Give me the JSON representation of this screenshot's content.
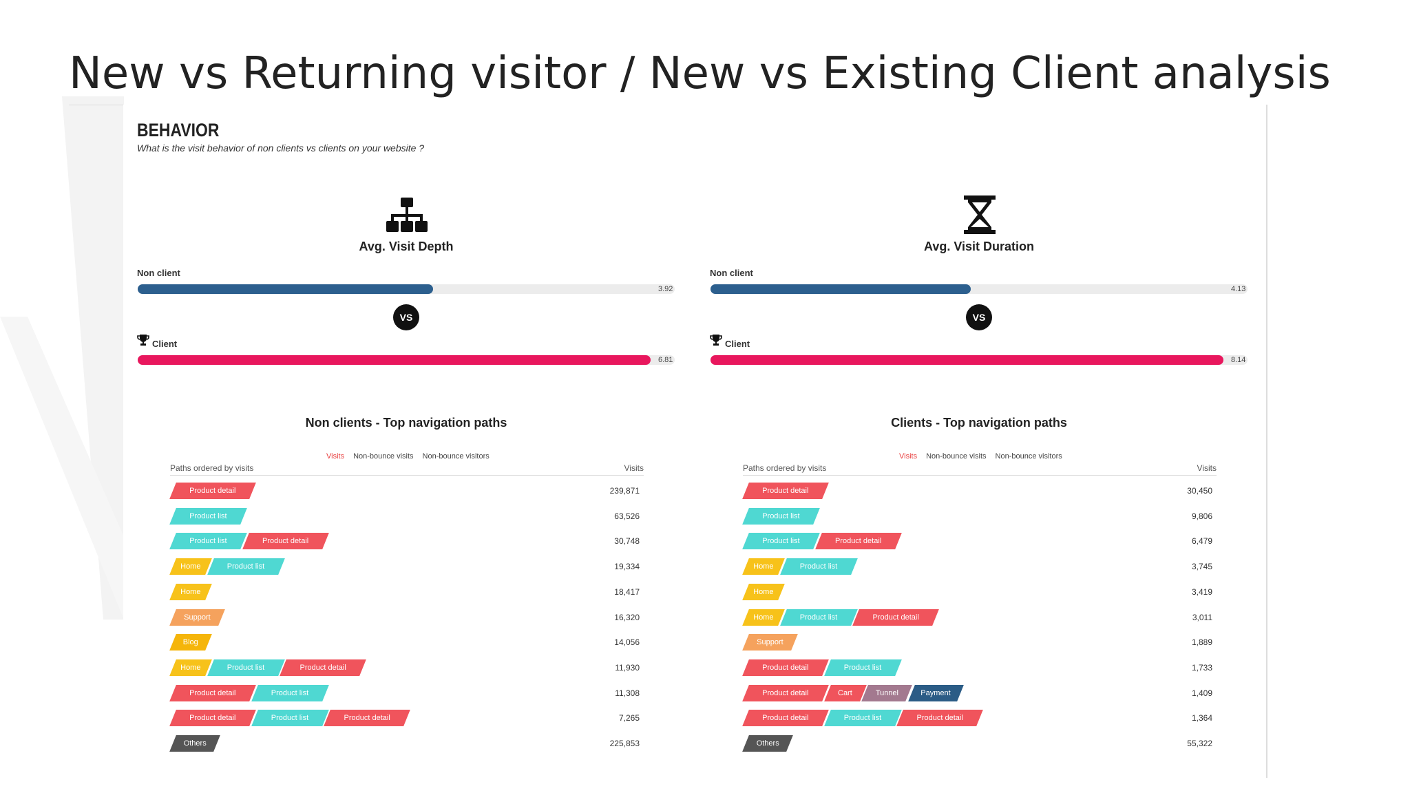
{
  "title": "New vs Returning visitor / New vs Existing Client analysis",
  "header": {
    "title": "BEHAVIOR",
    "subtitle": "What is the visit behavior of non clients vs clients on your website ?"
  },
  "vs": "VS",
  "metrics": [
    {
      "label": "Avg. Visit Depth",
      "non_client": {
        "label": "Non client",
        "value": 3.92,
        "color": "#2c5f8e"
      },
      "client": {
        "label": "Client",
        "value": 6.81,
        "color": "#e8175d"
      }
    },
    {
      "label": "Avg. Visit Duration",
      "non_client": {
        "label": "Non client",
        "value": 4.13,
        "color": "#2c5f8e"
      },
      "client": {
        "label": "Client",
        "value": 8.14,
        "color": "#e8175d"
      }
    }
  ],
  "tables": [
    {
      "title": "Non clients - Top navigation paths",
      "tabs": [
        "Visits",
        "Non-bounce visits",
        "Non-bounce visitors"
      ],
      "columns": [
        "Paths ordered by visits",
        "Visits"
      ],
      "rows": [
        {
          "steps": [
            {
              "label": "Product detail",
              "color": "#f0545c"
            }
          ],
          "visits": "239,871"
        },
        {
          "steps": [
            {
              "label": "Product list",
              "color": "#4fd8d2"
            }
          ],
          "visits": "63,526"
        },
        {
          "steps": [
            {
              "label": "Product list",
              "color": "#4fd8d2"
            },
            {
              "label": "Product detail",
              "color": "#f0545c"
            }
          ],
          "visits": "30,748"
        },
        {
          "steps": [
            {
              "label": "Home",
              "color": "#f7c21a"
            },
            {
              "label": "Product list",
              "color": "#4fd8d2"
            }
          ],
          "visits": "19,334"
        },
        {
          "steps": [
            {
              "label": "Home",
              "color": "#f7c21a"
            }
          ],
          "visits": "18,417"
        },
        {
          "steps": [
            {
              "label": "Support",
              "color": "#f5a25d"
            }
          ],
          "visits": "16,320"
        },
        {
          "steps": [
            {
              "label": "Blog",
              "color": "#f5b50a"
            }
          ],
          "visits": "14,056"
        },
        {
          "steps": [
            {
              "label": "Home",
              "color": "#f7c21a"
            },
            {
              "label": "Product list",
              "color": "#4fd8d2"
            },
            {
              "label": "Product detail",
              "color": "#f0545c"
            }
          ],
          "visits": "11,930"
        },
        {
          "steps": [
            {
              "label": "Product detail",
              "color": "#f0545c"
            },
            {
              "label": "Product list",
              "color": "#4fd8d2"
            }
          ],
          "visits": "11,308"
        },
        {
          "steps": [
            {
              "label": "Product detail",
              "color": "#f0545c"
            },
            {
              "label": "Product list",
              "color": "#4fd8d2"
            },
            {
              "label": "Product detail",
              "color": "#f0545c"
            }
          ],
          "visits": "7,265"
        },
        {
          "steps": [
            {
              "label": "Others",
              "color": "#555555"
            }
          ],
          "visits": "225,853"
        }
      ]
    },
    {
      "title": "Clients - Top navigation paths",
      "tabs": [
        "Visits",
        "Non-bounce visits",
        "Non-bounce visitors"
      ],
      "columns": [
        "Paths ordered by visits",
        "Visits"
      ],
      "rows": [
        {
          "steps": [
            {
              "label": "Product detail",
              "color": "#f0545c"
            }
          ],
          "visits": "30,450"
        },
        {
          "steps": [
            {
              "label": "Product list",
              "color": "#4fd8d2"
            }
          ],
          "visits": "9,806"
        },
        {
          "steps": [
            {
              "label": "Product list",
              "color": "#4fd8d2"
            },
            {
              "label": "Product detail",
              "color": "#f0545c"
            }
          ],
          "visits": "6,479"
        },
        {
          "steps": [
            {
              "label": "Home",
              "color": "#f7c21a"
            },
            {
              "label": "Product list",
              "color": "#4fd8d2"
            }
          ],
          "visits": "3,745"
        },
        {
          "steps": [
            {
              "label": "Home",
              "color": "#f7c21a"
            }
          ],
          "visits": "3,419"
        },
        {
          "steps": [
            {
              "label": "Home",
              "color": "#f7c21a"
            },
            {
              "label": "Product list",
              "color": "#4fd8d2"
            },
            {
              "label": "Product detail",
              "color": "#f0545c"
            }
          ],
          "visits": "3,011"
        },
        {
          "steps": [
            {
              "label": "Support",
              "color": "#f5a25d"
            }
          ],
          "visits": "1,889"
        },
        {
          "steps": [
            {
              "label": "Product detail",
              "color": "#f0545c"
            },
            {
              "label": "Product list",
              "color": "#4fd8d2"
            }
          ],
          "visits": "1,733"
        },
        {
          "steps": [
            {
              "label": "Product detail",
              "color": "#f0545c"
            },
            {
              "label": "Cart",
              "color": "#f0545c"
            },
            {
              "label": "Tunnel",
              "color": "#a3798f"
            },
            {
              "label": "Payment",
              "color": "#2b5c86"
            }
          ],
          "visits": "1,409"
        },
        {
          "steps": [
            {
              "label": "Product detail",
              "color": "#f0545c"
            },
            {
              "label": "Product list",
              "color": "#4fd8d2"
            },
            {
              "label": "Product detail",
              "color": "#f0545c"
            }
          ],
          "visits": "1,364"
        },
        {
          "steps": [
            {
              "label": "Others",
              "color": "#555555"
            }
          ],
          "visits": "55,322"
        }
      ]
    }
  ]
}
